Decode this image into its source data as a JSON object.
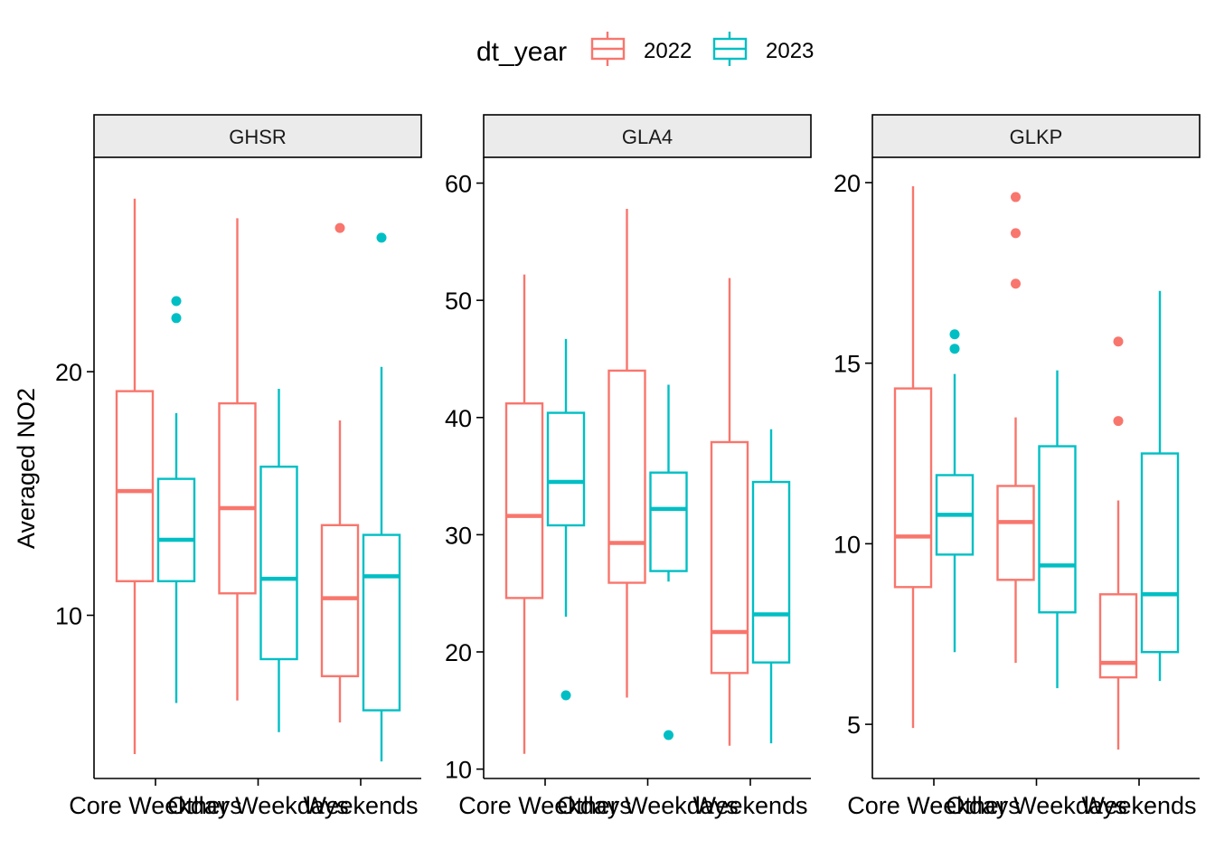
{
  "chart_data": {
    "type": "boxplot",
    "ylabel": "Averaged NO2",
    "xlabel": "",
    "legend": {
      "title": "dt_year",
      "position": "top",
      "entries": [
        {
          "label": "2022",
          "color": "#F8766D"
        },
        {
          "label": "2023",
          "color": "#00BFC4"
        }
      ]
    },
    "categories": [
      "Core Weekdays",
      "Other Weekdays",
      "Weekends"
    ],
    "grid": false,
    "panels": [
      {
        "title": "GHSR",
        "ylim": [
          3.3,
          28.8
        ],
        "yticks": [
          10,
          20
        ],
        "series": [
          {
            "name": "2022",
            "boxes": [
              {
                "category": "Core Weekdays",
                "whisker_low": 4.3,
                "q1": 11.4,
                "median": 15.1,
                "q3": 19.2,
                "whisker_high": 27.1,
                "outliers": []
              },
              {
                "category": "Other Weekdays",
                "whisker_low": 6.5,
                "q1": 10.9,
                "median": 14.4,
                "q3": 18.7,
                "whisker_high": 26.3,
                "outliers": []
              },
              {
                "category": "Weekends",
                "whisker_low": 5.6,
                "q1": 7.5,
                "median": 10.7,
                "q3": 13.7,
                "whisker_high": 18.0,
                "outliers": [
                  25.9
                ]
              }
            ]
          },
          {
            "name": "2023",
            "boxes": [
              {
                "category": "Core Weekdays",
                "whisker_low": 6.4,
                "q1": 11.4,
                "median": 13.1,
                "q3": 15.6,
                "whisker_high": 18.3,
                "outliers": [
                  22.9,
                  22.2
                ]
              },
              {
                "category": "Other Weekdays",
                "whisker_low": 5.2,
                "q1": 8.2,
                "median": 11.5,
                "q3": 16.1,
                "whisker_high": 19.3,
                "outliers": []
              },
              {
                "category": "Weekends",
                "whisker_low": 4.0,
                "q1": 6.1,
                "median": 11.6,
                "q3": 13.3,
                "whisker_high": 20.2,
                "outliers": [
                  25.5
                ]
              }
            ]
          }
        ]
      },
      {
        "title": "GLA4",
        "ylim": [
          9.2,
          62.2
        ],
        "yticks": [
          10,
          20,
          30,
          40,
          50,
          60
        ],
        "series": [
          {
            "name": "2022",
            "boxes": [
              {
                "category": "Core Weekdays",
                "whisker_low": 11.3,
                "q1": 24.6,
                "median": 31.6,
                "q3": 41.2,
                "whisker_high": 52.2,
                "outliers": []
              },
              {
                "category": "Other Weekdays",
                "whisker_low": 16.1,
                "q1": 25.9,
                "median": 29.3,
                "q3": 44.0,
                "whisker_high": 57.8,
                "outliers": []
              },
              {
                "category": "Weekends",
                "whisker_low": 12.0,
                "q1": 18.2,
                "median": 21.7,
                "q3": 37.9,
                "whisker_high": 51.9,
                "outliers": []
              }
            ]
          },
          {
            "name": "2023",
            "boxes": [
              {
                "category": "Core Weekdays",
                "whisker_low": 23.0,
                "q1": 30.8,
                "median": 34.5,
                "q3": 40.4,
                "whisker_high": 46.7,
                "outliers": [
                  16.3
                ]
              },
              {
                "category": "Other Weekdays",
                "whisker_low": 26.0,
                "q1": 26.9,
                "median": 32.2,
                "q3": 35.3,
                "whisker_high": 42.8,
                "outliers": [
                  12.9
                ]
              },
              {
                "category": "Weekends",
                "whisker_low": 12.2,
                "q1": 19.1,
                "median": 23.2,
                "q3": 34.5,
                "whisker_high": 39.0,
                "outliers": []
              }
            ]
          }
        ]
      },
      {
        "title": "GLKP",
        "ylim": [
          3.5,
          20.7
        ],
        "yticks": [
          5,
          10,
          15,
          20
        ],
        "series": [
          {
            "name": "2022",
            "boxes": [
              {
                "category": "Core Weekdays",
                "whisker_low": 4.9,
                "q1": 8.8,
                "median": 10.2,
                "q3": 14.3,
                "whisker_high": 19.9,
                "outliers": []
              },
              {
                "category": "Other Weekdays",
                "whisker_low": 6.7,
                "q1": 9.0,
                "median": 10.6,
                "q3": 11.6,
                "whisker_high": 13.5,
                "outliers": [
                  19.6,
                  18.6,
                  17.2
                ]
              },
              {
                "category": "Weekends",
                "whisker_low": 4.3,
                "q1": 6.3,
                "median": 6.7,
                "q3": 8.6,
                "whisker_high": 11.2,
                "outliers": [
                  15.6,
                  13.4
                ]
              }
            ]
          },
          {
            "name": "2023",
            "boxes": [
              {
                "category": "Core Weekdays",
                "whisker_low": 7.0,
                "q1": 9.7,
                "median": 10.8,
                "q3": 11.9,
                "whisker_high": 14.7,
                "outliers": [
                  15.8,
                  15.4
                ]
              },
              {
                "category": "Other Weekdays",
                "whisker_low": 6.0,
                "q1": 8.1,
                "median": 9.4,
                "q3": 12.7,
                "whisker_high": 14.8,
                "outliers": []
              },
              {
                "category": "Weekends",
                "whisker_low": 6.2,
                "q1": 7.0,
                "median": 8.6,
                "q3": 12.5,
                "whisker_high": 17.0,
                "outliers": []
              }
            ]
          }
        ]
      }
    ]
  }
}
